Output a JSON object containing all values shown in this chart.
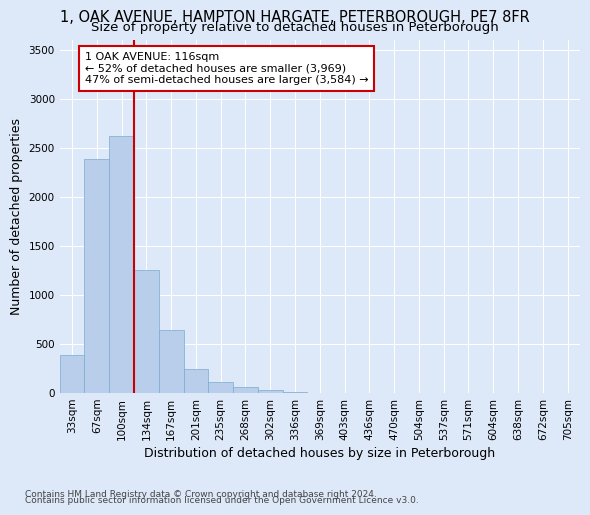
{
  "title": "1, OAK AVENUE, HAMPTON HARGATE, PETERBOROUGH, PE7 8FR",
  "subtitle": "Size of property relative to detached houses in Peterborough",
  "xlabel": "Distribution of detached houses by size in Peterborough",
  "ylabel": "Number of detached properties",
  "footnote1": "Contains HM Land Registry data © Crown copyright and database right 2024.",
  "footnote2": "Contains public sector information licensed under the Open Government Licence v3.0.",
  "bar_labels": [
    "33sqm",
    "67sqm",
    "100sqm",
    "134sqm",
    "167sqm",
    "201sqm",
    "235sqm",
    "268sqm",
    "302sqm",
    "336sqm",
    "369sqm",
    "403sqm",
    "436sqm",
    "470sqm",
    "504sqm",
    "537sqm",
    "571sqm",
    "604sqm",
    "638sqm",
    "672sqm",
    "705sqm"
  ],
  "bar_values": [
    390,
    2390,
    2620,
    1250,
    640,
    250,
    110,
    60,
    30,
    10,
    5,
    2,
    0,
    0,
    0,
    0,
    0,
    0,
    0,
    0,
    0
  ],
  "bar_color": "#b8ceeb",
  "bar_edge_color": "#7aaad0",
  "vline_x_data": 2.5,
  "vline_color": "#cc0000",
  "annotation_text": "1 OAK AVENUE: 116sqm\n← 52% of detached houses are smaller (3,969)\n47% of semi-detached houses are larger (3,584) →",
  "ylim": [
    0,
    3600
  ],
  "yticks": [
    0,
    500,
    1000,
    1500,
    2000,
    2500,
    3000,
    3500
  ],
  "bg_color": "#dde8f8",
  "plot_bg_color": "#dde8f8",
  "grid_color": "white",
  "title_fontsize": 10.5,
  "subtitle_fontsize": 9.5,
  "axis_label_fontsize": 9,
  "tick_fontsize": 7.5,
  "footnote_fontsize": 6.5
}
